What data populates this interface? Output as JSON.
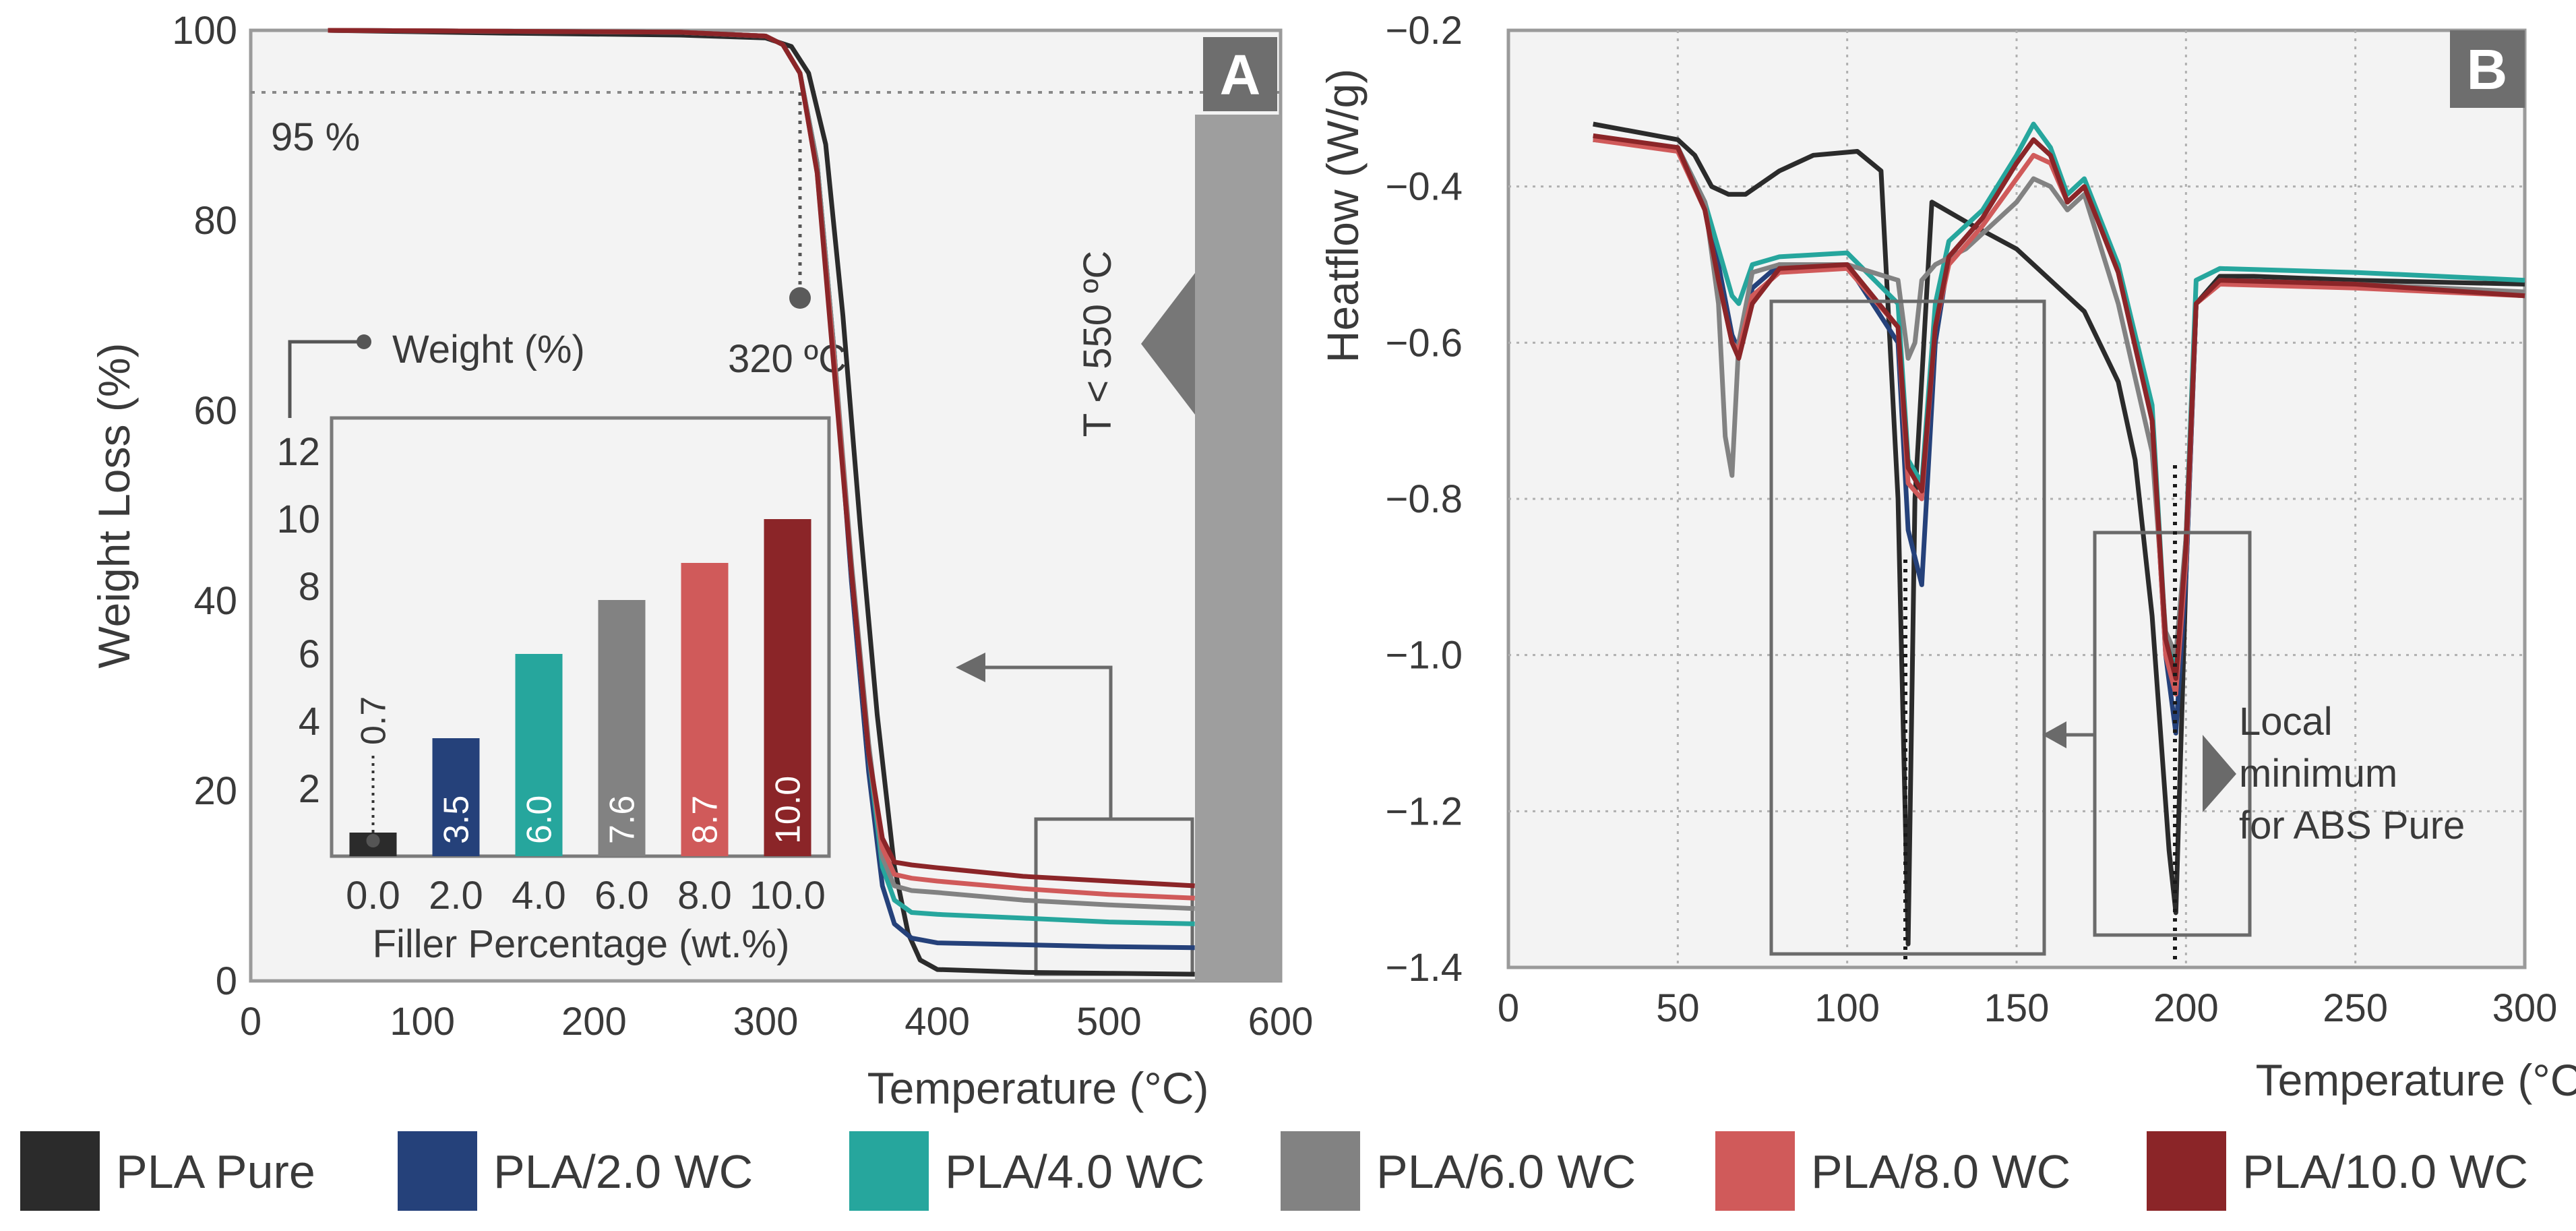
{
  "legend": [
    {
      "label": "PLA Pure",
      "color": "#2b2b2b"
    },
    {
      "label": "PLA/2.0 WC",
      "color": "#25417a"
    },
    {
      "label": "PLA/4.0 WC",
      "color": "#26a69d"
    },
    {
      "label": "PLA/6.0 WC",
      "color": "#828282"
    },
    {
      "label": "PLA/8.0 WC",
      "color": "#d05a5a"
    },
    {
      "label": "PLA/10.0 WC",
      "color": "#8b2528"
    }
  ],
  "chart_data": [
    {
      "panel": "A",
      "type": "line",
      "title": "",
      "xlabel": "Temperature (°C)",
      "ylabel": "Weight Loss (%)",
      "xlim": [
        0,
        600
      ],
      "ylim": [
        0,
        100
      ],
      "xticks": [
        "0",
        "100",
        "200",
        "300",
        "400",
        "500",
        "600"
      ],
      "yticks": [
        "0",
        "20",
        "40",
        "60",
        "80",
        "100"
      ],
      "annotations": {
        "threshold_label": "95 %",
        "threshold_value": 95,
        "onset_label": "320 ºC",
        "onset_value": 320,
        "band_label": "T < 550 ºC",
        "band_start": 550
      },
      "series": [
        {
          "name": "PLA Pure",
          "x": [
            45,
            150,
            250,
            300,
            315,
            325,
            335,
            345,
            355,
            365,
            375,
            383,
            390,
            400,
            450,
            500,
            550
          ],
          "y": [
            100,
            99.7,
            99.5,
            99.2,
            98.3,
            95.5,
            88,
            70,
            48,
            28,
            12,
            5,
            2.2,
            1.2,
            0.9,
            0.8,
            0.7
          ]
        },
        {
          "name": "PLA/2.0 WC",
          "x": [
            45,
            150,
            250,
            300,
            310,
            320,
            330,
            340,
            350,
            360,
            368,
            375,
            385,
            400,
            450,
            500,
            550
          ],
          "y": [
            100,
            99.9,
            99.8,
            99.4,
            98.5,
            95.5,
            86,
            66,
            42,
            22,
            10,
            6,
            4.5,
            4,
            3.8,
            3.6,
            3.5
          ]
        },
        {
          "name": "PLA/4.0 WC",
          "x": [
            45,
            150,
            250,
            300,
            310,
            320,
            330,
            340,
            350,
            360,
            368,
            375,
            385,
            400,
            450,
            500,
            550
          ],
          "y": [
            100,
            99.9,
            99.8,
            99.4,
            98.5,
            95.5,
            86,
            66,
            43,
            24,
            12,
            8.5,
            7.2,
            7,
            6.6,
            6.2,
            6
          ]
        },
        {
          "name": "PLA/6.0 WC",
          "x": [
            45,
            150,
            250,
            300,
            310,
            320,
            330,
            340,
            350,
            360,
            368,
            375,
            385,
            400,
            450,
            500,
            550
          ],
          "y": [
            100,
            99.9,
            99.8,
            99.4,
            98.5,
            95.5,
            86,
            66,
            44,
            25,
            13,
            10,
            9.5,
            9.3,
            8.5,
            8,
            7.6
          ]
        },
        {
          "name": "PLA/8.0 WC",
          "x": [
            45,
            150,
            250,
            300,
            310,
            320,
            330,
            340,
            350,
            360,
            368,
            375,
            385,
            400,
            450,
            500,
            550
          ],
          "y": [
            100,
            99.9,
            99.8,
            99.4,
            98.5,
            95.5,
            85,
            65,
            43,
            24,
            14,
            11.2,
            10.8,
            10.5,
            9.7,
            9.1,
            8.7
          ]
        },
        {
          "name": "PLA/10.0 WC",
          "x": [
            45,
            150,
            250,
            300,
            310,
            320,
            330,
            340,
            350,
            360,
            368,
            375,
            385,
            400,
            450,
            500,
            550
          ],
          "y": [
            100,
            99.9,
            99.8,
            99.4,
            98.5,
            95.5,
            85,
            64,
            43,
            24,
            15,
            12.5,
            12.2,
            11.9,
            11,
            10.5,
            10
          ]
        }
      ],
      "inset": {
        "type": "bar",
        "title": "Weight (%)",
        "xlabel": "Filler Percentage (wt.%)",
        "ylabel": "",
        "ylim": [
          0,
          13
        ],
        "yticks": [
          "2",
          "4",
          "6",
          "8",
          "10",
          "12"
        ],
        "categories": [
          "0.0",
          "2.0",
          "4.0",
          "6.0",
          "8.0",
          "10.0"
        ],
        "values": [
          0.7,
          3.5,
          6.0,
          7.6,
          8.7,
          10.0
        ],
        "labels": [
          "0.7",
          "3.5",
          "6.0",
          "7.6",
          "8.7",
          "10.0"
        ]
      }
    },
    {
      "panel": "B",
      "type": "line",
      "title": "",
      "xlabel": "Temperature (°C)",
      "ylabel": "Heatflow (W/g)",
      "xlim": [
        0,
        300
      ],
      "ylim": [
        -1.4,
        -0.2
      ],
      "xticks": [
        "0",
        "50",
        "100",
        "150",
        "200",
        "250",
        "300"
      ],
      "yticks": [
        "−0.2",
        "−0.4",
        "−0.6",
        "−0.8",
        "−1.0",
        "−1.2",
        "−1.4"
      ],
      "annotations": {
        "minimum_label_lines": [
          "Local",
          "minimum",
          "for ABS Pure"
        ]
      },
      "series": [
        {
          "name": "PLA Pure",
          "x": [
            25,
            50,
            55,
            60,
            65,
            70,
            80,
            90,
            103,
            110,
            115,
            118,
            120,
            125,
            135,
            150,
            170,
            180,
            185,
            190,
            195,
            197,
            200,
            203,
            210,
            220,
            250,
            300
          ],
          "y": [
            -0.32,
            -0.34,
            -0.36,
            -0.4,
            -0.41,
            -0.41,
            -0.38,
            -0.36,
            -0.355,
            -0.38,
            -0.8,
            -1.37,
            -0.8,
            -0.42,
            -0.445,
            -0.48,
            -0.56,
            -0.65,
            -0.75,
            -0.95,
            -1.25,
            -1.33,
            -0.9,
            -0.55,
            -0.515,
            -0.515,
            -0.52,
            -0.525
          ]
        },
        {
          "name": "PLA/2.0 WC",
          "x": [
            25,
            50,
            58,
            62,
            66,
            68,
            72,
            80,
            100,
            115,
            118,
            122,
            126,
            130,
            140,
            150,
            155,
            160,
            165,
            170,
            180,
            190,
            194,
            197,
            200,
            203,
            210,
            250,
            300
          ],
          "y": [
            -0.34,
            -0.35,
            -0.42,
            -0.5,
            -0.59,
            -0.61,
            -0.53,
            -0.5,
            -0.5,
            -0.6,
            -0.84,
            -0.91,
            -0.6,
            -0.49,
            -0.44,
            -0.37,
            -0.34,
            -0.36,
            -0.42,
            -0.4,
            -0.5,
            -0.7,
            -1.0,
            -1.1,
            -0.9,
            -0.55,
            -0.52,
            -0.525,
            -0.54
          ]
        },
        {
          "name": "PLA/4.0 WC",
          "x": [
            25,
            50,
            58,
            62,
            66,
            68,
            72,
            80,
            100,
            115,
            118,
            122,
            126,
            130,
            140,
            150,
            155,
            160,
            165,
            170,
            180,
            190,
            194,
            197,
            200,
            203,
            210,
            250,
            300
          ],
          "y": [
            -0.34,
            -0.35,
            -0.42,
            -0.48,
            -0.54,
            -0.55,
            -0.5,
            -0.49,
            -0.485,
            -0.55,
            -0.75,
            -0.78,
            -0.55,
            -0.47,
            -0.43,
            -0.36,
            -0.32,
            -0.35,
            -0.41,
            -0.39,
            -0.5,
            -0.68,
            -0.98,
            -1.02,
            -0.85,
            -0.52,
            -0.505,
            -0.51,
            -0.52
          ]
        },
        {
          "name": "PLA/6.0 WC",
          "x": [
            25,
            50,
            58,
            62,
            64,
            66,
            68,
            72,
            80,
            100,
            115,
            118,
            120,
            122,
            126,
            135,
            150,
            155,
            160,
            165,
            170,
            180,
            190,
            194,
            197,
            200,
            203,
            210,
            250,
            300
          ],
          "y": [
            -0.34,
            -0.35,
            -0.42,
            -0.55,
            -0.72,
            -0.77,
            -0.6,
            -0.51,
            -0.5,
            -0.5,
            -0.52,
            -0.62,
            -0.6,
            -0.52,
            -0.5,
            -0.48,
            -0.42,
            -0.39,
            -0.4,
            -0.43,
            -0.41,
            -0.55,
            -0.74,
            -0.97,
            -1.0,
            -0.85,
            -0.55,
            -0.52,
            -0.525,
            -0.535
          ]
        },
        {
          "name": "PLA/8.0 WC",
          "x": [
            25,
            50,
            58,
            62,
            66,
            68,
            72,
            80,
            100,
            115,
            118,
            122,
            126,
            130,
            140,
            150,
            155,
            160,
            165,
            170,
            180,
            190,
            194,
            197,
            200,
            203,
            210,
            250,
            300
          ],
          "y": [
            -0.34,
            -0.355,
            -0.43,
            -0.52,
            -0.6,
            -0.61,
            -0.54,
            -0.51,
            -0.505,
            -0.58,
            -0.78,
            -0.8,
            -0.58,
            -0.5,
            -0.45,
            -0.39,
            -0.36,
            -0.37,
            -0.42,
            -0.4,
            -0.51,
            -0.7,
            -1.0,
            -1.05,
            -0.88,
            -0.55,
            -0.525,
            -0.53,
            -0.54
          ]
        },
        {
          "name": "PLA/10.0 WC",
          "x": [
            25,
            50,
            58,
            62,
            66,
            68,
            72,
            80,
            100,
            115,
            118,
            122,
            126,
            130,
            140,
            150,
            155,
            160,
            165,
            170,
            180,
            190,
            194,
            197,
            200,
            203,
            210,
            250,
            300
          ],
          "y": [
            -0.335,
            -0.35,
            -0.43,
            -0.52,
            -0.6,
            -0.62,
            -0.55,
            -0.505,
            -0.5,
            -0.58,
            -0.76,
            -0.79,
            -0.58,
            -0.49,
            -0.44,
            -0.37,
            -0.34,
            -0.36,
            -0.42,
            -0.4,
            -0.51,
            -0.7,
            -0.98,
            -1.03,
            -0.86,
            -0.55,
            -0.52,
            -0.525,
            -0.54
          ]
        }
      ]
    }
  ]
}
